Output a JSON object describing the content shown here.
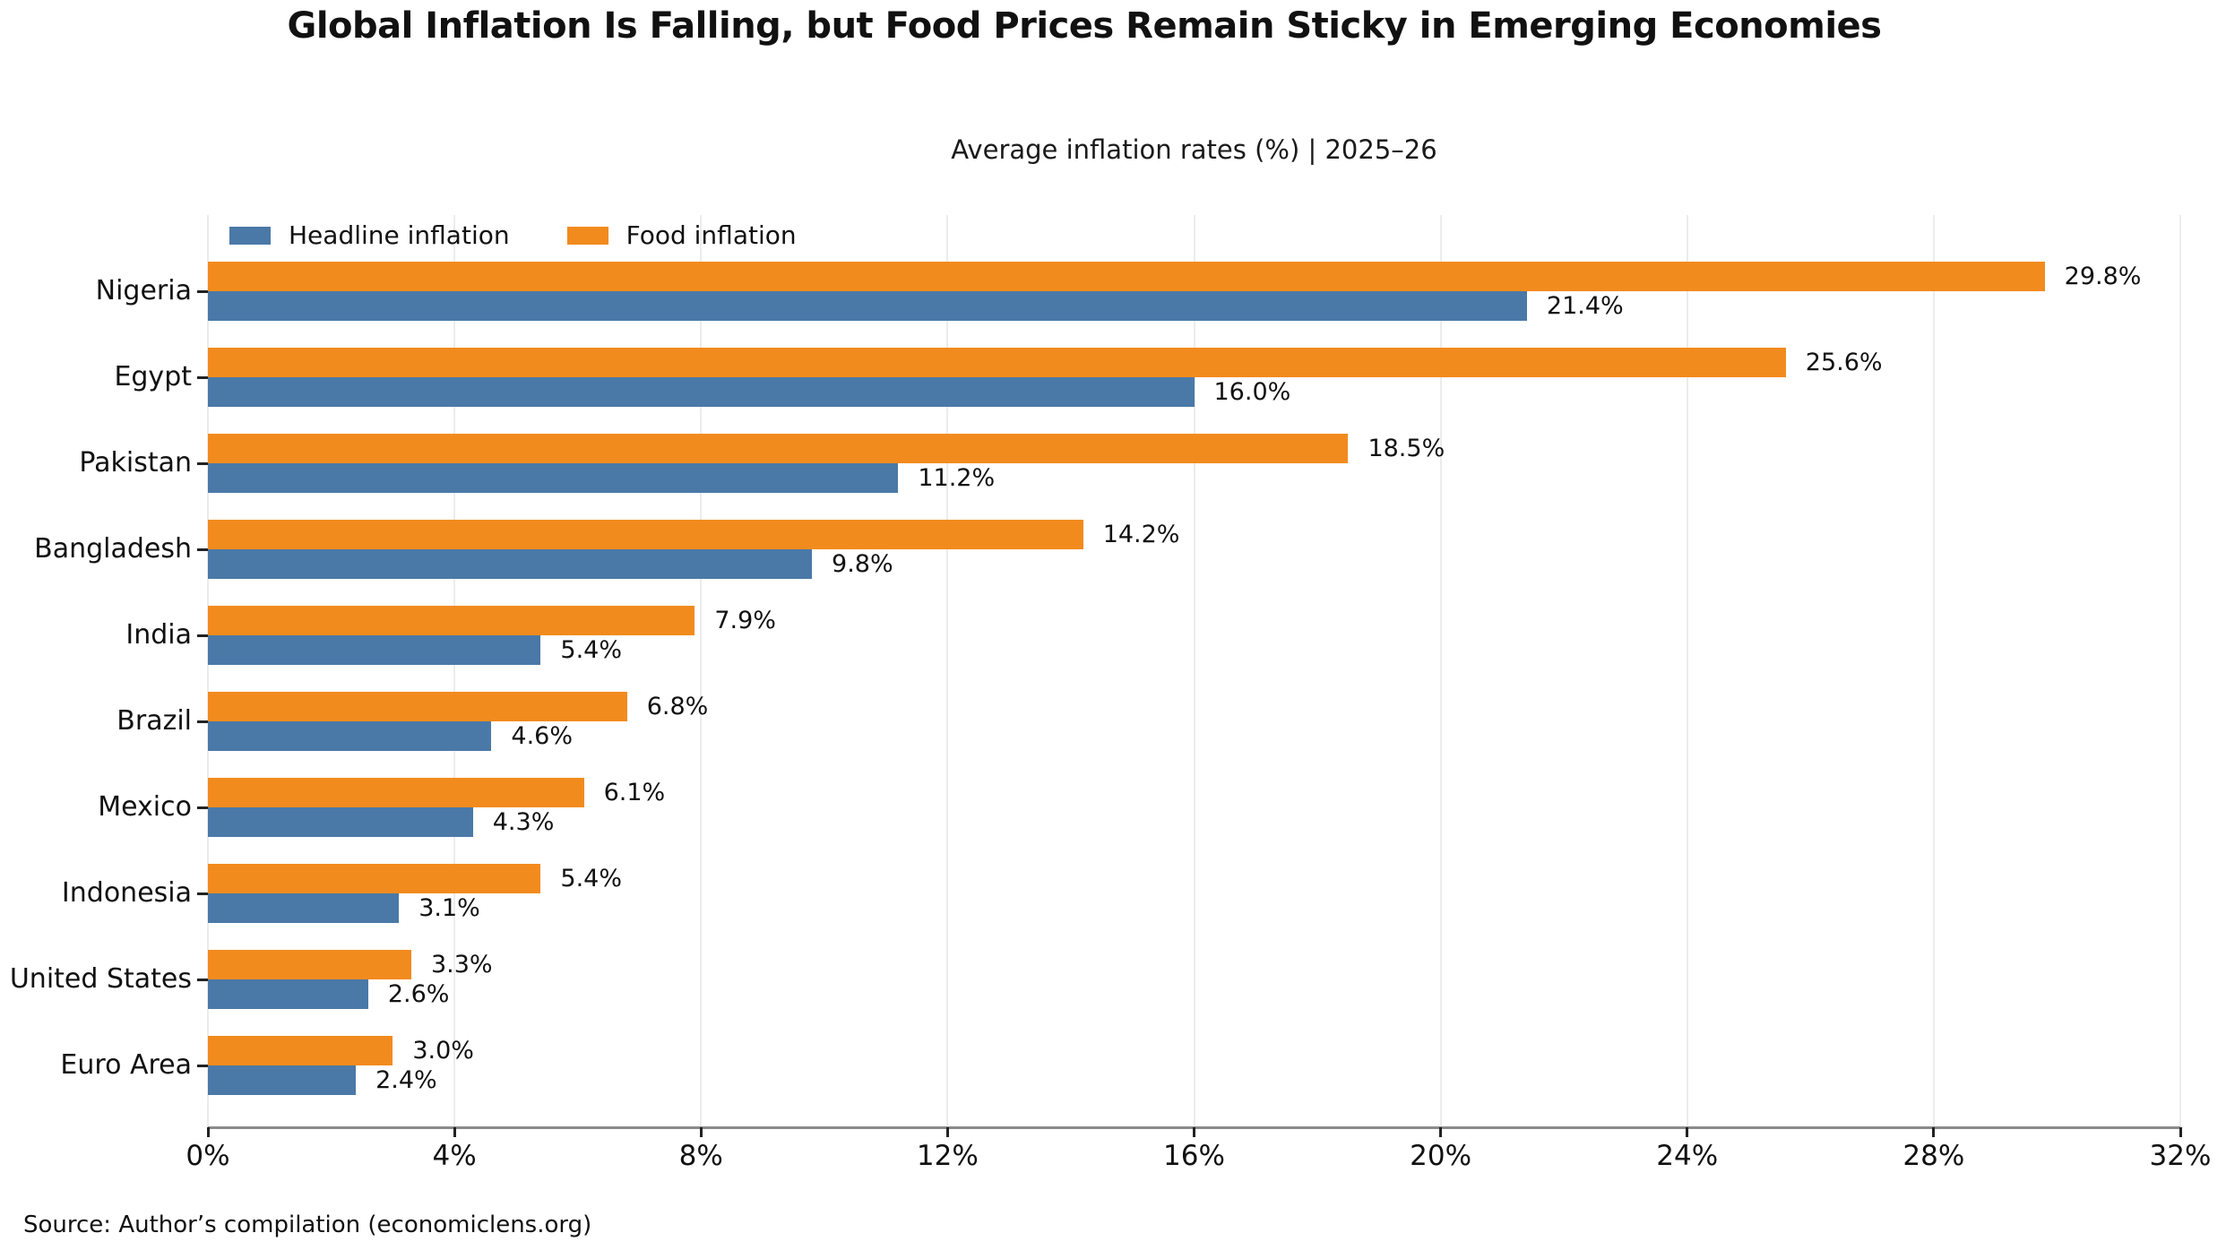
{
  "title": "Global Inflation Is Falling, but Food Prices Remain Sticky in Emerging Economies",
  "subtitle": "Average inflation rates (%) | 2025–26",
  "source": "Source: Author’s compilation (economiclens.org)",
  "colors": {
    "headline_blue": "#4a79a8",
    "food_orange": "#f28b1e",
    "gridline": "#ececec",
    "axis_spine": "#8a8a8a",
    "text": "#111111"
  },
  "legend": [
    {
      "label": "Headline inflation",
      "color": "#4a79a8"
    },
    {
      "label": "Food inflation",
      "color": "#f28b1e"
    }
  ],
  "chart_data": {
    "type": "bar",
    "orientation": "horizontal",
    "title": "Global Inflation Is Falling, but Food Prices Remain Sticky in Emerging Economies",
    "subtitle": "Average inflation rates (%) | 2025–26",
    "categories": [
      "Nigeria",
      "Egypt",
      "Pakistan",
      "Bangladesh",
      "India",
      "Brazil",
      "Mexico",
      "Indonesia",
      "United States",
      "Euro Area"
    ],
    "series": [
      {
        "name": "Headline inflation",
        "color": "#4a79a8",
        "values": [
          21.4,
          16.0,
          11.2,
          9.8,
          5.4,
          4.6,
          4.3,
          3.1,
          2.6,
          2.4
        ]
      },
      {
        "name": "Food inflation",
        "color": "#f28b1e",
        "values": [
          29.8,
          25.6,
          18.5,
          14.2,
          7.9,
          6.8,
          6.1,
          5.4,
          3.3,
          3.0
        ]
      }
    ],
    "value_label_format": "{value}%",
    "xlabel": "",
    "ylabel": "",
    "xlim": [
      0,
      32
    ],
    "xticks": [
      "0%",
      "4%",
      "8%",
      "12%",
      "16%",
      "20%",
      "24%",
      "28%",
      "32%"
    ],
    "grid": "vertical",
    "legend_position": "upper-left-inside"
  }
}
